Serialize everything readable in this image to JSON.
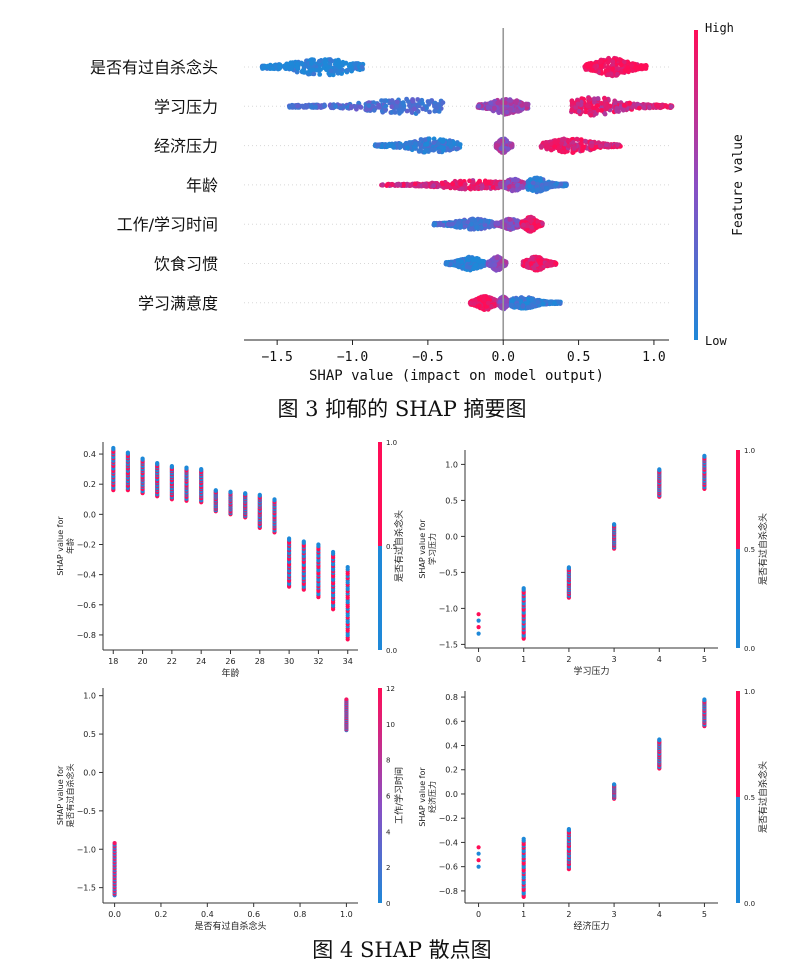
{
  "figure3_caption": "图 3 抑郁的 SHAP 摘要图",
  "figure4_caption": "图 4 SHAP 散点图",
  "colors": {
    "low": "#1e88d8",
    "high": "#ff0d57"
  },
  "chart_data": [
    {
      "type": "scatter",
      "subtype": "beeswarm",
      "xlabel": "SHAP value (impact on model output)",
      "xlim": [
        -1.72,
        1.1
      ],
      "xticks": [
        -1.5,
        -1.0,
        -0.5,
        0.0,
        0.5,
        1.0
      ],
      "xtick_labels": [
        "−1.5",
        "−1.0",
        "−0.5",
        "0.0",
        "0.5",
        "1.0"
      ],
      "colorbar": {
        "label": "Feature value",
        "high_label": "High",
        "low_label": "Low"
      },
      "features": [
        {
          "name": "是否有过自杀念头",
          "clusters": [
            {
              "center": -1.2,
              "min": -1.6,
              "max": -0.93,
              "color": 0.0,
              "height": 1.0
            },
            {
              "center": 0.72,
              "min": 0.54,
              "max": 0.95,
              "color": 1.0,
              "height": 1.0
            }
          ]
        },
        {
          "name": "学习压力",
          "clusters": [
            {
              "center": -0.62,
              "min": -1.42,
              "max": -0.4,
              "color": 0.25,
              "height": 0.85
            },
            {
              "center": 0.02,
              "min": -0.17,
              "max": 0.17,
              "color": 0.6,
              "height": 0.9
            },
            {
              "center": 0.6,
              "min": 0.45,
              "max": 1.12,
              "color": 0.85,
              "height": 1.0
            }
          ]
        },
        {
          "name": "经济压力",
          "clusters": [
            {
              "center": -0.47,
              "min": -0.85,
              "max": -0.28,
              "color": 0.1,
              "height": 0.8
            },
            {
              "center": 0.0,
              "min": -0.05,
              "max": 0.06,
              "color": 0.6,
              "height": 0.8
            },
            {
              "center": 0.45,
              "min": 0.25,
              "max": 0.78,
              "color": 0.9,
              "height": 0.8
            }
          ]
        },
        {
          "name": "年龄",
          "clusters": [
            {
              "center": -0.2,
              "min": -0.82,
              "max": 0.0,
              "color": 0.85,
              "height": 0.5
            },
            {
              "center": 0.07,
              "min": -0.02,
              "max": 0.16,
              "color": 0.6,
              "height": 0.7
            },
            {
              "center": 0.22,
              "min": 0.16,
              "max": 0.42,
              "color": 0.15,
              "height": 0.8
            }
          ]
        },
        {
          "name": "工作/学习时间",
          "clusters": [
            {
              "center": -0.2,
              "min": -0.46,
              "max": -0.05,
              "color": 0.2,
              "height": 0.6
            },
            {
              "center": 0.05,
              "min": -0.05,
              "max": 0.14,
              "color": 0.55,
              "height": 0.6
            },
            {
              "center": 0.18,
              "min": 0.12,
              "max": 0.26,
              "color": 0.95,
              "height": 0.8
            }
          ]
        },
        {
          "name": "饮食习惯",
          "clusters": [
            {
              "center": -0.22,
              "min": -0.38,
              "max": -0.12,
              "color": 0.05,
              "height": 0.75
            },
            {
              "center": -0.04,
              "min": -0.1,
              "max": 0.02,
              "color": 0.55,
              "height": 0.8
            },
            {
              "center": 0.22,
              "min": 0.13,
              "max": 0.35,
              "color": 0.95,
              "height": 0.75
            }
          ]
        },
        {
          "name": "学习满意度",
          "clusters": [
            {
              "center": -0.12,
              "min": -0.22,
              "max": -0.03,
              "color": 0.95,
              "height": 0.8
            },
            {
              "center": 0.0,
              "min": -0.03,
              "max": 0.06,
              "color": 0.6,
              "height": 0.7
            },
            {
              "center": 0.13,
              "min": 0.05,
              "max": 0.38,
              "color": 0.1,
              "height": 0.65
            }
          ]
        }
      ]
    },
    {
      "type": "scatter",
      "subtype": "dependence",
      "xlabel": "年龄",
      "ylabel": "SHAP value for 年龄",
      "ylabel_lines": [
        "SHAP value for",
        "年龄"
      ],
      "xlim": [
        17.3,
        34.7
      ],
      "ylim": [
        -0.9,
        0.48
      ],
      "xticks": [
        18,
        20,
        22,
        24,
        26,
        28,
        30,
        32,
        34
      ],
      "yticks": [
        0.4,
        0.2,
        0.0,
        -0.2,
        -0.4,
        -0.6,
        -0.8
      ],
      "ytick_labels": [
        "0.4",
        "0.2",
        "0.0",
        "−0.2",
        "−0.4",
        "−0.6",
        "−0.8"
      ],
      "colorbar": {
        "label": "是否有过自杀念头",
        "ticks": [
          "1.0",
          "0.5",
          "0.0"
        ],
        "split": "binary"
      },
      "columns": [
        {
          "x": 18,
          "min": 0.16,
          "max": 0.44
        },
        {
          "x": 19,
          "min": 0.16,
          "max": 0.41
        },
        {
          "x": 20,
          "min": 0.14,
          "max": 0.37
        },
        {
          "x": 21,
          "min": 0.12,
          "max": 0.34
        },
        {
          "x": 22,
          "min": 0.1,
          "max": 0.32
        },
        {
          "x": 23,
          "min": 0.09,
          "max": 0.31
        },
        {
          "x": 24,
          "min": 0.08,
          "max": 0.3
        },
        {
          "x": 25,
          "min": 0.02,
          "max": 0.16
        },
        {
          "x": 26,
          "min": 0.0,
          "max": 0.15
        },
        {
          "x": 27,
          "min": -0.02,
          "max": 0.14
        },
        {
          "x": 28,
          "min": -0.09,
          "max": 0.13
        },
        {
          "x": 29,
          "min": -0.12,
          "max": 0.1
        },
        {
          "x": 30,
          "min": -0.48,
          "max": -0.16
        },
        {
          "x": 31,
          "min": -0.5,
          "max": -0.18
        },
        {
          "x": 32,
          "min": -0.55,
          "max": -0.2
        },
        {
          "x": 33,
          "min": -0.63,
          "max": -0.25
        },
        {
          "x": 34,
          "min": -0.83,
          "max": -0.35
        }
      ]
    },
    {
      "type": "scatter",
      "subtype": "dependence",
      "xlabel": "学习压力",
      "ylabel": "SHAP value for 学习压力",
      "ylabel_lines": [
        "SHAP value for",
        "学习压力"
      ],
      "xlim": [
        -0.3,
        5.3
      ],
      "ylim": [
        -1.55,
        1.2
      ],
      "xticks": [
        0,
        1,
        2,
        3,
        4,
        5
      ],
      "yticks": [
        1.0,
        0.5,
        0.0,
        -0.5,
        -1.0,
        -1.5
      ],
      "ytick_labels": [
        "1.0",
        "0.5",
        "0.0",
        "−0.5",
        "−1.0",
        "−1.5"
      ],
      "colorbar": {
        "label": "是否有过自杀念头",
        "ticks": [
          "1.0",
          "0.5",
          "0.0"
        ],
        "split": "binary"
      },
      "columns": [
        {
          "x": 0,
          "min": -1.35,
          "max": -1.08,
          "sparse": true
        },
        {
          "x": 1,
          "min": -1.42,
          "max": -0.72
        },
        {
          "x": 2,
          "min": -0.85,
          "max": -0.43
        },
        {
          "x": 3,
          "min": -0.17,
          "max": 0.17
        },
        {
          "x": 4,
          "min": 0.55,
          "max": 0.93
        },
        {
          "x": 5,
          "min": 0.66,
          "max": 1.12
        }
      ]
    },
    {
      "type": "scatter",
      "subtype": "dependence",
      "xlabel": "是否有过自杀念头",
      "ylabel": "SHAP value for 是否有过自杀念头",
      "ylabel_lines": [
        "SHAP value for",
        "是否有过自杀念头"
      ],
      "xlim": [
        -0.05,
        1.05
      ],
      "ylim": [
        -1.7,
        1.1
      ],
      "xticks": [
        0.0,
        0.2,
        0.4,
        0.6,
        0.8,
        1.0
      ],
      "xtick_labels": [
        "0.0",
        "0.2",
        "0.4",
        "0.6",
        "0.8",
        "1.0"
      ],
      "yticks": [
        1.0,
        0.5,
        0.0,
        -0.5,
        -1.0,
        -1.5
      ],
      "ytick_labels": [
        "1.0",
        "0.5",
        "0.0",
        "−0.5",
        "−1.0",
        "−1.5"
      ],
      "colorbar": {
        "label": "工作/学习时间",
        "ticks": [
          "12",
          "10",
          "8",
          "6",
          "4",
          "2",
          "0"
        ],
        "split": "gradient"
      },
      "columns": [
        {
          "x": 0.0,
          "min": -1.6,
          "max": -0.92
        },
        {
          "x": 1.0,
          "min": 0.55,
          "max": 0.95
        }
      ]
    },
    {
      "type": "scatter",
      "subtype": "dependence",
      "xlabel": "经济压力",
      "ylabel": "SHAP value for 经济压力",
      "ylabel_lines": [
        "SHAP value for",
        "经济压力"
      ],
      "xlim": [
        -0.3,
        5.3
      ],
      "ylim": [
        -0.9,
        0.85
      ],
      "xticks": [
        0,
        1,
        2,
        3,
        4,
        5
      ],
      "yticks": [
        0.8,
        0.6,
        0.4,
        0.2,
        0.0,
        -0.2,
        -0.4,
        -0.6,
        -0.8
      ],
      "ytick_labels": [
        "0.8",
        "0.6",
        "0.4",
        "0.2",
        "0.0",
        "−0.2",
        "−0.4",
        "−0.6",
        "−0.8"
      ],
      "colorbar": {
        "label": "是否有过自杀念头",
        "ticks": [
          "1.0",
          "0.5",
          "0.0"
        ],
        "split": "binary"
      },
      "columns": [
        {
          "x": 0,
          "min": -0.6,
          "max": -0.44,
          "sparse": true
        },
        {
          "x": 1,
          "min": -0.85,
          "max": -0.37
        },
        {
          "x": 2,
          "min": -0.62,
          "max": -0.29
        },
        {
          "x": 3,
          "min": -0.04,
          "max": 0.08
        },
        {
          "x": 4,
          "min": 0.21,
          "max": 0.45
        },
        {
          "x": 5,
          "min": 0.56,
          "max": 0.78
        }
      ]
    }
  ]
}
